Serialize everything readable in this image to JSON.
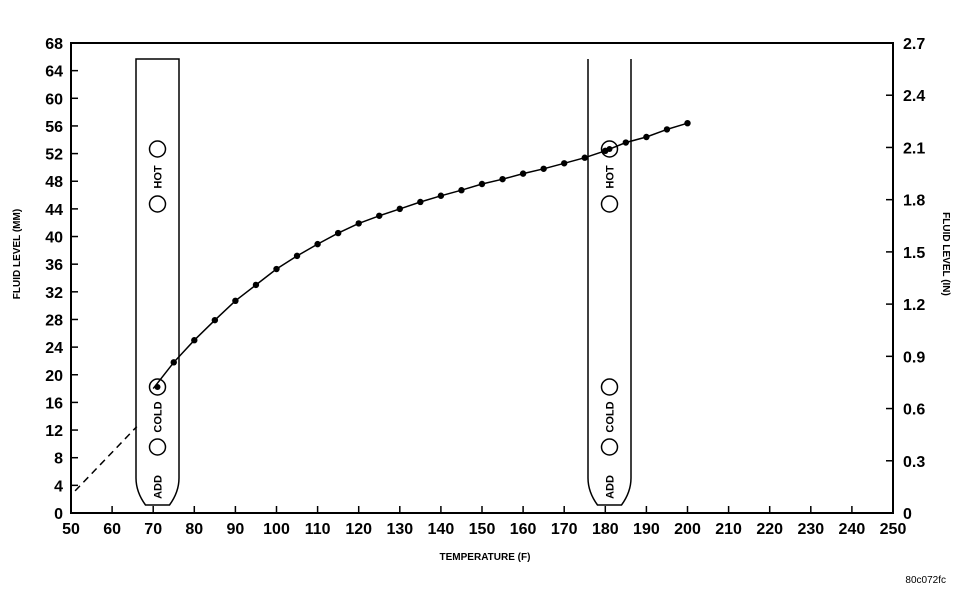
{
  "chart_data": {
    "type": "line",
    "xlabel": "TEMPERATURE (F)",
    "ylabel_left": "FLUID LEVEL (MM)",
    "ylabel_right": "FLUID LEVEL (IN)",
    "xlim": [
      50,
      250
    ],
    "ylim_left": [
      0,
      68
    ],
    "ylim_right": [
      0,
      2.7
    ],
    "x_ticks": [
      "50",
      "60",
      "70",
      "80",
      "90",
      "100",
      "110",
      "120",
      "130",
      "140",
      "150",
      "160",
      "170",
      "180",
      "190",
      "200",
      "210",
      "220",
      "230",
      "240",
      "250"
    ],
    "y_left_ticks": [
      "0",
      "4",
      "8",
      "12",
      "16",
      "20",
      "24",
      "28",
      "32",
      "36",
      "40",
      "44",
      "48",
      "52",
      "56",
      "60",
      "64",
      "68"
    ],
    "y_right_ticks": [
      "0",
      "0.3",
      "0.6",
      "0.9",
      "1.2",
      "1.5",
      "1.8",
      "2.1",
      "2.4",
      "2.7"
    ],
    "grid": false,
    "series": [
      {
        "style": "solid-with-markers",
        "x": [
          70,
          75,
          80,
          85,
          90,
          95,
          100,
          105,
          110,
          115,
          120,
          125,
          130,
          135,
          140,
          145,
          150,
          155,
          160,
          165,
          170,
          175,
          180,
          185,
          190,
          195,
          200
        ],
        "y": [
          18,
          21.8,
          25,
          27.9,
          30.7,
          33,
          35.3,
          37.2,
          38.9,
          40.5,
          41.9,
          43,
          44,
          45,
          45.9,
          46.7,
          47.6,
          48.3,
          49.1,
          49.8,
          50.6,
          51.4,
          52.4,
          53.6,
          54.4,
          55.5,
          56.4
        ]
      },
      {
        "style": "dashed",
        "x": [
          51,
          66
        ],
        "y": [
          3.2,
          12.5
        ]
      }
    ],
    "dipsticks": [
      {
        "label_add": "ADD",
        "label_cold": "COLD",
        "label_hot": "HOT",
        "temp_reference": 70,
        "marked": "cold_upper"
      },
      {
        "label_add": "ADD",
        "label_cold": "COLD",
        "label_hot": "HOT",
        "temp_reference": 180,
        "marked": "hot_upper"
      }
    ]
  },
  "figure_id": "80c072fc"
}
